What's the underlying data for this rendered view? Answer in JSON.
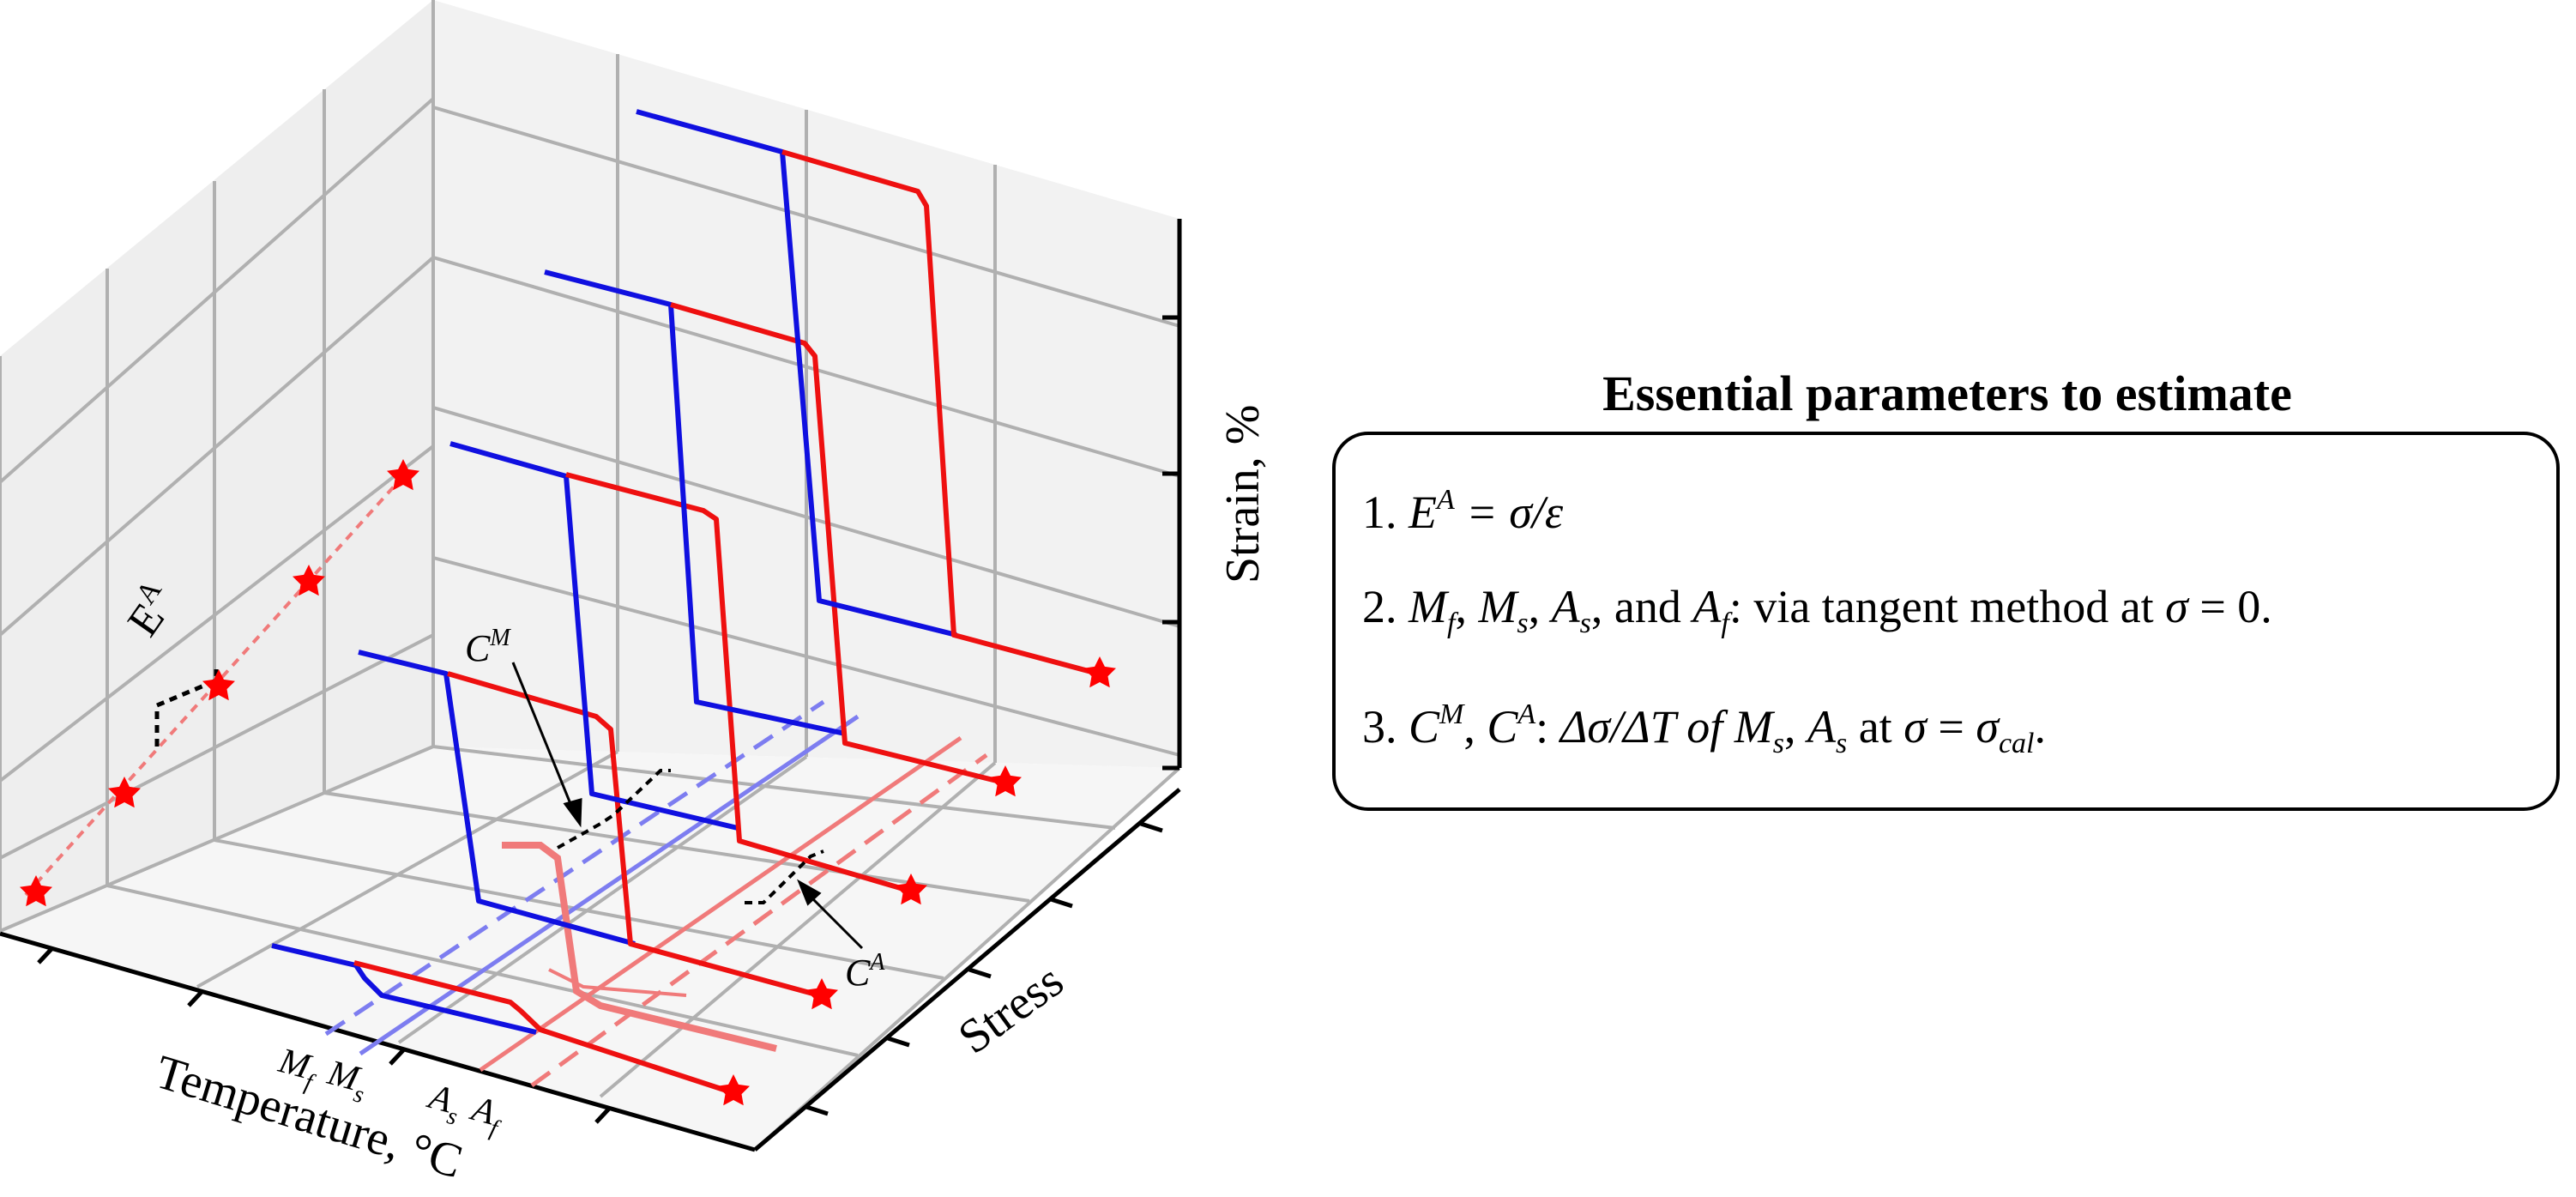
{
  "axes": {
    "temperature_label": "Temperature, °C",
    "stress_label": "Stress",
    "strain_label": "Strain, %"
  },
  "temperature_markers": {
    "mf": {
      "main": "M",
      "sub": "f"
    },
    "ms": {
      "main": "M",
      "sub": "s"
    },
    "as": {
      "main": "A",
      "sub": "s"
    },
    "af": {
      "main": "A",
      "sub": "f"
    }
  },
  "annotations": {
    "modulus": {
      "main": "E",
      "sup": "A"
    },
    "cm": {
      "main": "C",
      "sup": "M"
    },
    "ca": {
      "main": "C",
      "sup": "A"
    }
  },
  "panel": {
    "title": "Essential parameters to estimate",
    "item1": {
      "num": "1. ",
      "e": "E",
      "e_sup": "A",
      "rest": " = σ/ε"
    },
    "item2": {
      "num": "2. ",
      "m": "M",
      "f": "f",
      "comma1": ", ",
      "m2": "M",
      "s": "s",
      "comma2": ", ",
      "a": "A",
      "s2": "s",
      "and": ", and ",
      "a2": "A",
      "f2": "f",
      "rest": ": via tangent method at ",
      "sigma": "σ",
      "eq": " = 0."
    },
    "item3": {
      "num": "3. ",
      "c": "C",
      "m_sup": "M",
      "comma": ", ",
      "c2": "C",
      "a_sup": "A",
      "colon": ": ",
      "expr": "Δσ/ΔT of M",
      "s": "s",
      "comma2": ", ",
      "a": "A",
      "s2": "s",
      "at": " at ",
      "sigma": "σ",
      "eq": " = ",
      "sigma2": "σ",
      "cal": "cal",
      "dot": "."
    }
  },
  "colors": {
    "cooling": "#1010e0",
    "heating": "#ee1010",
    "cooling_light": "#7d7df0",
    "heating_light": "#f07a7a",
    "grid": "#b0b0b0",
    "pane": "#ececec",
    "star": "#ff0000"
  }
}
